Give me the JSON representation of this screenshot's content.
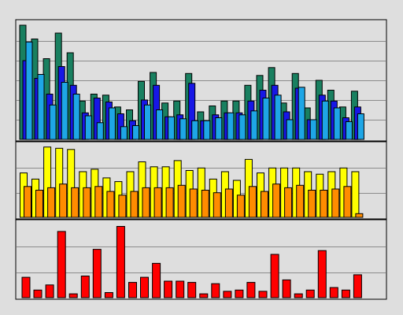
{
  "chart_data": [
    {
      "type": "bar",
      "series": [
        {
          "colour": "#198060",
          "values": [
            5.8,
            5.1,
            4.1,
            5.4,
            4.4,
            1.95,
            2.3,
            2.25,
            1.65,
            1.5,
            2.95,
            3.4,
            1.85,
            1.95,
            3.35,
            1.4,
            1.7,
            1.95,
            1.95,
            2.75,
            3.25,
            3.65,
            1.85,
            3.35,
            1.6,
            3.0,
            2.5,
            1.65,
            2.45
          ]
        },
        {
          "colour": "#1717e6",
          "values": [
            4.0,
            3.1,
            2.3,
            3.7,
            2.75,
            1.35,
            2.1,
            1.9,
            1.3,
            0.95,
            2.0,
            2.75,
            1.15,
            1.25,
            2.85,
            0.95,
            1.25,
            1.35,
            1.35,
            1.95,
            2.5,
            2.75,
            1.4,
            2.6,
            1.0,
            2.25,
            1.95,
            1.1,
            1.65
          ]
        },
        {
          "colour": "#1ea6e6",
          "values": [
            4.95,
            3.3,
            1.75,
            2.9,
            2.3,
            1.2,
            0.85,
            1.6,
            0.65,
            0.7,
            1.75,
            1.5,
            1.15,
            1.05,
            0.95,
            0.95,
            1.1,
            1.35,
            1.25,
            1.45,
            2.1,
            2.25,
            1.0,
            2.65,
            1.0,
            1.95,
            1.6,
            0.9,
            1.3
          ]
        }
      ],
      "ylim": [
        0,
        6
      ],
      "grid": true
    },
    {
      "type": "bar",
      "series": [
        {
          "colour": "#ffff00",
          "values": [
            1.8,
            1.55,
            2.85,
            2.8,
            2.75,
            1.85,
            1.95,
            1.6,
            1.45,
            1.85,
            2.25,
            2.05,
            2.05,
            2.3,
            1.9,
            2.0,
            1.55,
            1.85,
            1.5,
            2.35,
            1.8,
            2.0,
            2.0,
            2.0,
            1.85,
            1.75,
            1.85,
            2.0,
            1.85
          ]
        },
        {
          "colour": "#ff8c00",
          "values": [
            1.25,
            1.1,
            1.2,
            1.35,
            1.2,
            1.2,
            1.25,
            1.05,
            0.9,
            1.05,
            1.2,
            1.2,
            1.2,
            1.3,
            1.15,
            1.1,
            1.0,
            1.15,
            0.9,
            1.25,
            1.05,
            1.35,
            1.2,
            1.3,
            1.1,
            1.1,
            1.15,
            1.25,
            0.15
          ]
        }
      ],
      "ylim": [
        0,
        3
      ],
      "grid": true
    },
    {
      "type": "bar",
      "series": [
        {
          "colour": "#ff0000",
          "values": [
            0.8,
            0.3,
            0.5,
            2.6,
            0.15,
            0.85,
            1.9,
            0.2,
            2.8,
            0.6,
            0.8,
            1.35,
            0.65,
            0.65,
            0.6,
            0.15,
            0.55,
            0.25,
            0.3,
            0.6,
            0.25,
            1.7,
            0.7,
            0.15,
            0.3,
            1.85,
            0.4,
            0.3,
            0.9
          ]
        }
      ],
      "ylim": [
        0,
        3
      ],
      "grid": true
    }
  ]
}
